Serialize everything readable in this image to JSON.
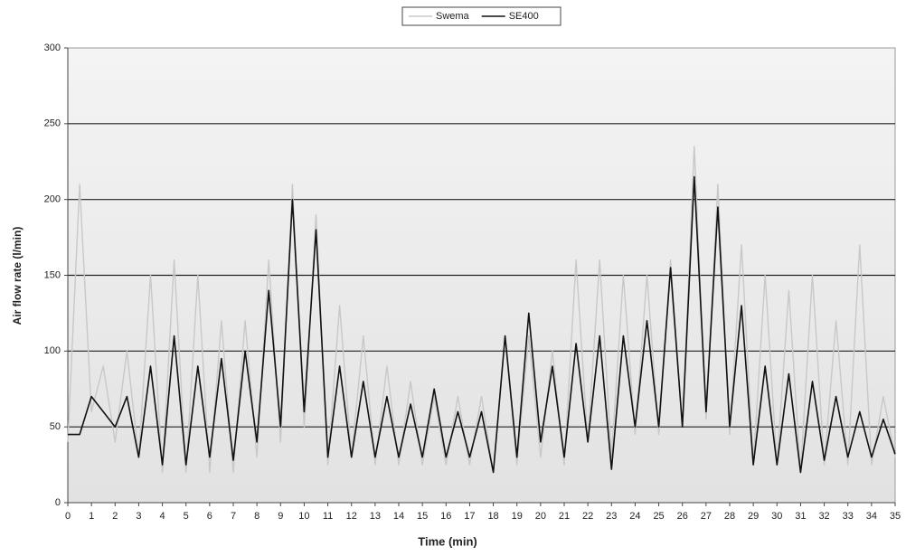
{
  "chart_data": {
    "type": "line",
    "xlabel": "Time (min)",
    "ylabel": "Air flow rate (l/min)",
    "x": [
      0,
      0.5,
      1,
      1.5,
      2,
      2.5,
      3,
      3.5,
      4,
      4.5,
      5,
      5.5,
      6,
      6.5,
      7,
      7.5,
      8,
      8.5,
      9,
      9.5,
      10,
      10.5,
      11,
      11.5,
      12,
      12.5,
      13,
      13.5,
      14,
      14.5,
      15,
      15.5,
      16,
      16.5,
      17,
      17.5,
      18,
      18.5,
      19,
      19.5,
      20,
      20.5,
      21,
      21.5,
      22,
      22.5,
      23,
      23.5,
      24,
      24.5,
      25,
      25.5,
      26,
      26.5,
      27,
      27.5,
      28,
      28.5,
      29,
      29.5,
      30,
      30.5,
      31,
      31.5,
      32,
      32.5,
      33,
      33.5,
      34,
      34.5,
      35
    ],
    "series": [
      {
        "name": "Swema",
        "color": "#c8c8c8",
        "values": [
          40,
          210,
          60,
          90,
          40,
          100,
          30,
          150,
          20,
          160,
          20,
          150,
          20,
          120,
          20,
          120,
          30,
          160,
          40,
          210,
          50,
          190,
          25,
          130,
          30,
          110,
          25,
          90,
          25,
          80,
          25,
          70,
          25,
          70,
          25,
          70,
          20,
          110,
          25,
          110,
          30,
          100,
          25,
          160,
          40,
          160,
          30,
          150,
          45,
          150,
          45,
          160,
          50,
          235,
          55,
          210,
          45,
          170,
          25,
          150,
          25,
          140,
          20,
          150,
          25,
          120,
          25,
          170,
          25,
          70,
          30
        ]
      },
      {
        "name": "SE400",
        "color": "#111111",
        "values": [
          45,
          45,
          70,
          60,
          50,
          70,
          30,
          90,
          25,
          110,
          25,
          90,
          30,
          95,
          28,
          100,
          40,
          140,
          50,
          200,
          60,
          180,
          30,
          90,
          30,
          80,
          30,
          70,
          30,
          65,
          30,
          75,
          30,
          60,
          30,
          60,
          20,
          110,
          30,
          125,
          40,
          90,
          30,
          105,
          40,
          110,
          22,
          110,
          50,
          120,
          50,
          155,
          50,
          215,
          60,
          195,
          50,
          130,
          25,
          90,
          25,
          85,
          20,
          80,
          28,
          70,
          30,
          60,
          30,
          55,
          32
        ]
      }
    ],
    "xlim": [
      0,
      35
    ],
    "xticks": [
      0,
      1,
      2,
      3,
      4,
      5,
      6,
      7,
      8,
      9,
      10,
      11,
      12,
      13,
      14,
      15,
      16,
      17,
      18,
      19,
      20,
      21,
      22,
      23,
      24,
      25,
      26,
      27,
      28,
      29,
      30,
      31,
      32,
      33,
      34,
      35
    ],
    "ylim": [
      0,
      300
    ],
    "yticks": [
      0,
      50,
      100,
      150,
      200,
      250,
      300
    ],
    "grid": true,
    "legend": "top"
  }
}
